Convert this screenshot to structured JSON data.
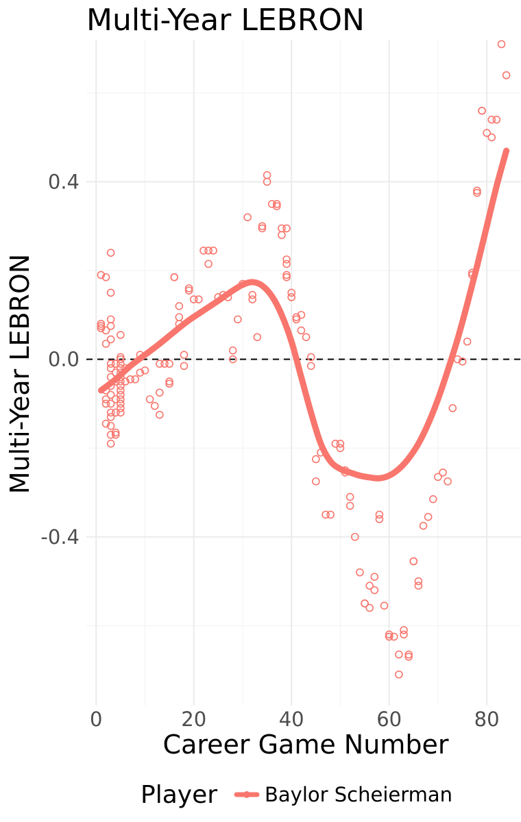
{
  "chart_data": {
    "type": "scatter",
    "title": "Multi-Year LEBRON",
    "xlabel": "Career Game Number",
    "ylabel": "Multi-Year LEBRON",
    "xlim": [
      -2,
      87
    ],
    "ylim": [
      -0.78,
      0.72
    ],
    "x_ticks": [
      0,
      20,
      40,
      60,
      80
    ],
    "x_tick_labels": [
      "0",
      "20",
      "40",
      "60",
      "80"
    ],
    "y_ticks": [
      0.4,
      0.0,
      -0.4
    ],
    "y_tick_labels": [
      "0.4",
      "0.0",
      "-0.4"
    ],
    "reference_line": {
      "y": 0,
      "style": "dashed"
    },
    "grid": true,
    "color": "#F8766D",
    "legend": {
      "title": "Player",
      "position": "bottom",
      "entries": [
        "Baylor Scheierman"
      ]
    },
    "series": [
      {
        "name": "Baylor Scheierman",
        "points": [
          [
            1,
            0.19
          ],
          [
            1,
            0.08
          ],
          [
            1,
            0.075
          ],
          [
            1,
            0.07
          ],
          [
            2,
            0.185
          ],
          [
            2,
            0.065
          ],
          [
            2,
            0.035
          ],
          [
            2,
            -0.07
          ],
          [
            2,
            -0.09
          ],
          [
            2,
            -0.1
          ],
          [
            2,
            -0.145
          ],
          [
            3,
            0.24
          ],
          [
            3,
            0.15
          ],
          [
            3,
            0.09
          ],
          [
            3,
            0.075
          ],
          [
            3,
            0.045
          ],
          [
            3,
            -0.01
          ],
          [
            3,
            -0.02
          ],
          [
            3,
            -0.04
          ],
          [
            3,
            -0.06
          ],
          [
            3,
            -0.08
          ],
          [
            3,
            -0.1
          ],
          [
            3,
            -0.12
          ],
          [
            3,
            -0.13
          ],
          [
            3,
            -0.15
          ],
          [
            3,
            -0.17
          ],
          [
            3,
            -0.19
          ],
          [
            4,
            -0.01
          ],
          [
            4,
            -0.03
          ],
          [
            4,
            -0.05
          ],
          [
            4,
            -0.09
          ],
          [
            4,
            -0.12
          ],
          [
            4,
            -0.17
          ],
          [
            4,
            -0.165
          ],
          [
            5,
            0.055
          ],
          [
            5,
            0.005
          ],
          [
            5,
            0.0
          ],
          [
            5,
            -0.01
          ],
          [
            5,
            -0.02
          ],
          [
            5,
            -0.03
          ],
          [
            5,
            -0.04
          ],
          [
            5,
            -0.05
          ],
          [
            5,
            -0.06
          ],
          [
            5,
            -0.07
          ],
          [
            5,
            -0.08
          ],
          [
            5,
            -0.09
          ],
          [
            5,
            -0.1
          ],
          [
            5,
            -0.11
          ],
          [
            5,
            -0.12
          ],
          [
            6,
            -0.02
          ],
          [
            6,
            -0.05
          ],
          [
            7,
            -0.045
          ],
          [
            8,
            -0.045
          ],
          [
            9,
            0.01
          ],
          [
            9,
            -0.03
          ],
          [
            10,
            -0.025
          ],
          [
            11,
            -0.09
          ],
          [
            12,
            -0.105
          ],
          [
            13,
            -0.01
          ],
          [
            13,
            -0.075
          ],
          [
            13,
            -0.125
          ],
          [
            14,
            -0.01
          ],
          [
            15,
            -0.01
          ],
          [
            15,
            -0.05
          ],
          [
            15,
            -0.055
          ],
          [
            16,
            0.185
          ],
          [
            16,
            0.185
          ],
          [
            17,
            0.12
          ],
          [
            17,
            0.095
          ],
          [
            17,
            0.08
          ],
          [
            18,
            0.01
          ],
          [
            18,
            -0.015
          ],
          [
            19,
            0.16
          ],
          [
            19,
            0.155
          ],
          [
            20,
            0.135
          ],
          [
            21,
            0.135
          ],
          [
            22,
            0.245
          ],
          [
            23,
            0.245
          ],
          [
            23,
            0.215
          ],
          [
            24,
            0.245
          ],
          [
            25,
            0.14
          ],
          [
            26,
            0.145
          ],
          [
            27,
            0.14
          ],
          [
            28,
            0.02
          ],
          [
            28,
            0.0
          ],
          [
            29,
            0.09
          ],
          [
            30,
            0.17
          ],
          [
            31,
            0.32
          ],
          [
            32,
            0.145
          ],
          [
            32,
            0.135
          ],
          [
            33,
            0.05
          ],
          [
            34,
            0.3
          ],
          [
            34,
            0.295
          ],
          [
            35,
            0.415
          ],
          [
            35,
            0.4
          ],
          [
            36,
            0.35
          ],
          [
            37,
            0.35
          ],
          [
            37,
            0.345
          ],
          [
            38,
            0.295
          ],
          [
            38,
            0.28
          ],
          [
            39,
            0.295
          ],
          [
            39,
            0.225
          ],
          [
            39,
            0.215
          ],
          [
            39,
            0.19
          ],
          [
            39,
            0.185
          ],
          [
            40,
            0.15
          ],
          [
            40,
            0.14
          ],
          [
            41,
            0.095
          ],
          [
            41,
            0.09
          ],
          [
            42,
            0.1
          ],
          [
            42,
            0.065
          ],
          [
            43,
            0.05
          ],
          [
            44,
            0.005
          ],
          [
            44,
            -0.015
          ],
          [
            45,
            -0.225
          ],
          [
            45,
            -0.275
          ],
          [
            46,
            -0.21
          ],
          [
            47,
            -0.35
          ],
          [
            48,
            -0.35
          ],
          [
            49,
            -0.19
          ],
          [
            50,
            -0.2
          ],
          [
            50,
            -0.19
          ],
          [
            51,
            -0.25
          ],
          [
            51,
            -0.255
          ],
          [
            52,
            -0.31
          ],
          [
            52,
            -0.33
          ],
          [
            53,
            -0.4
          ],
          [
            54,
            -0.48
          ],
          [
            55,
            -0.55
          ],
          [
            55,
            -0.55
          ],
          [
            56,
            -0.51
          ],
          [
            56,
            -0.56
          ],
          [
            57,
            -0.49
          ],
          [
            57,
            -0.52
          ],
          [
            58,
            -0.35
          ],
          [
            58,
            -0.36
          ],
          [
            59,
            -0.555
          ],
          [
            60,
            -0.62
          ],
          [
            60,
            -0.625
          ],
          [
            61,
            -0.625
          ],
          [
            62,
            -0.665
          ],
          [
            62,
            -0.71
          ],
          [
            63,
            -0.61
          ],
          [
            63,
            -0.62
          ],
          [
            64,
            -0.665
          ],
          [
            64,
            -0.67
          ],
          [
            65,
            -0.455
          ],
          [
            65,
            -0.455
          ],
          [
            66,
            -0.5
          ],
          [
            66,
            -0.51
          ],
          [
            67,
            -0.375
          ],
          [
            68,
            -0.355
          ],
          [
            69,
            -0.315
          ],
          [
            70,
            -0.265
          ],
          [
            71,
            -0.255
          ],
          [
            72,
            -0.275
          ],
          [
            73,
            -0.11
          ],
          [
            74,
            0.0
          ],
          [
            75,
            -0.005
          ],
          [
            76,
            0.04
          ],
          [
            77,
            0.195
          ],
          [
            77,
            0.19
          ],
          [
            78,
            0.38
          ],
          [
            78,
            0.375
          ],
          [
            79,
            0.56
          ],
          [
            79,
            0.56
          ],
          [
            80,
            0.51
          ],
          [
            81,
            0.54
          ],
          [
            81,
            0.5
          ],
          [
            82,
            0.54
          ],
          [
            83,
            0.71
          ],
          [
            84,
            0.64
          ]
        ],
        "smooth": [
          [
            1,
            -0.07
          ],
          [
            4,
            -0.045
          ],
          [
            7,
            -0.015
          ],
          [
            10,
            0.01
          ],
          [
            13,
            0.035
          ],
          [
            16,
            0.062
          ],
          [
            19,
            0.088
          ],
          [
            22,
            0.11
          ],
          [
            25,
            0.132
          ],
          [
            28,
            0.155
          ],
          [
            30,
            0.168
          ],
          [
            32,
            0.174
          ],
          [
            34,
            0.166
          ],
          [
            36,
            0.142
          ],
          [
            38,
            0.1
          ],
          [
            40,
            0.04
          ],
          [
            42,
            -0.04
          ],
          [
            44,
            -0.12
          ],
          [
            46,
            -0.19
          ],
          [
            48,
            -0.23
          ],
          [
            50,
            -0.247
          ],
          [
            52,
            -0.255
          ],
          [
            54,
            -0.262
          ],
          [
            56,
            -0.266
          ],
          [
            58,
            -0.268
          ],
          [
            60,
            -0.262
          ],
          [
            62,
            -0.247
          ],
          [
            64,
            -0.223
          ],
          [
            66,
            -0.19
          ],
          [
            68,
            -0.145
          ],
          [
            70,
            -0.09
          ],
          [
            72,
            -0.025
          ],
          [
            74,
            0.045
          ],
          [
            76,
            0.125
          ],
          [
            78,
            0.21
          ],
          [
            80,
            0.3
          ],
          [
            82,
            0.39
          ],
          [
            84,
            0.47
          ]
        ]
      }
    ]
  }
}
